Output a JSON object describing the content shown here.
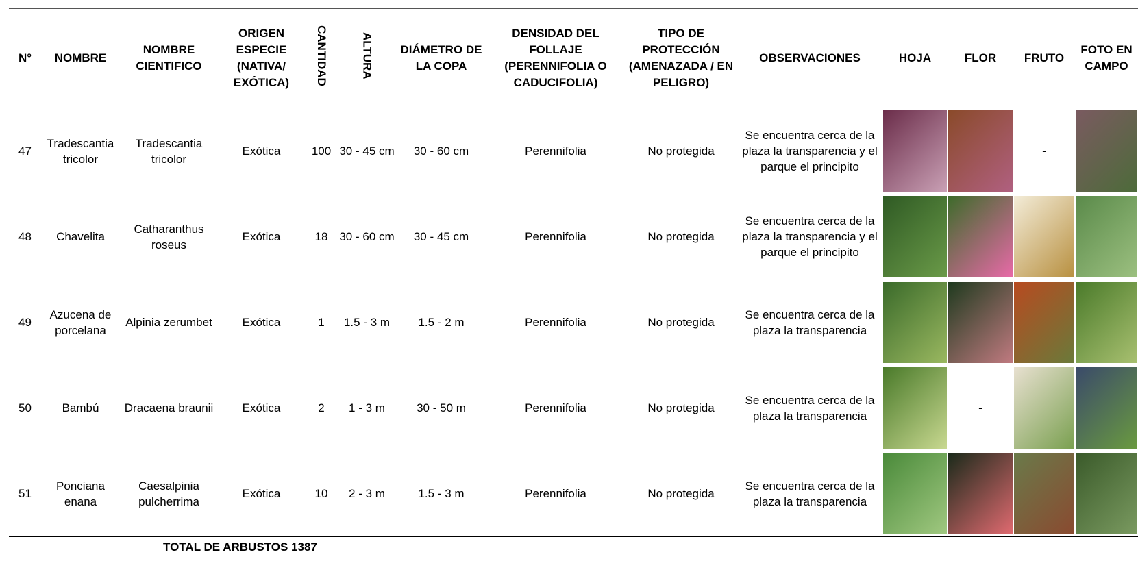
{
  "table": {
    "headers": [
      "N°",
      "NOMBRE",
      "NOMBRE CIENTIFICO",
      "ORIGEN ESPECIE (NATIVA/ EXÓTICA)",
      "CANTIDAD",
      "ALTURA",
      "DIÁMETRO DE LA COPA",
      "DENSIDAD DEL FOLLAJE (PERENNIFOLIA O CADUCIFOLIA)",
      "TIPO DE PROTECCIÓN (AMENAZADA / EN PELIGRO)",
      "OBSERVACIONES",
      "HOJA",
      "FLOR",
      "FRUTO",
      "FOTO EN CAMPO"
    ],
    "rows": [
      {
        "cells": [
          47,
          "Tradescantia tricolor",
          "Tradescantia tricolor",
          "Exótica",
          100,
          "30 - 45 cm",
          "30 - 60 cm",
          "Perennifolia",
          "No protegida",
          "Se encuentra cerca de la plaza la transparencia y el parque el principito"
        ],
        "media": [
          null,
          null,
          "-",
          null
        ]
      },
      {
        "cells": [
          48,
          "Chavelita",
          "Catharanthus roseus",
          "Exótica",
          18,
          "30 - 60 cm",
          "30 - 45 cm",
          "Perennifolia",
          "No protegida",
          "Se encuentra cerca de la plaza la transparencia y el parque el principito"
        ],
        "media": [
          null,
          null,
          null,
          null
        ]
      },
      {
        "cells": [
          49,
          "Azucena de porcelana",
          "Alpinia zerumbet",
          "Exótica",
          1,
          "1.5 - 3 m",
          "1.5 - 2 m",
          "Perennifolia",
          "No protegida",
          "Se encuentra cerca de la plaza la transparencia"
        ],
        "media": [
          null,
          null,
          null,
          null
        ]
      },
      {
        "cells": [
          50,
          "Bambú",
          "Dracaena braunii",
          "Exótica",
          2,
          "1 - 3 m",
          "30 - 50 m",
          "Perennifolia",
          "No protegida",
          "Se encuentra cerca de la plaza la transparencia"
        ],
        "media": [
          null,
          "-",
          null,
          null
        ]
      },
      {
        "cells": [
          51,
          "Ponciana enana",
          "Caesalpinia pulcherrima",
          "Exótica",
          10,
          "2 - 3 m",
          "1.5 - 3 m",
          "Perennifolia",
          "No protegida",
          "Se encuentra cerca de la plaza la transparencia"
        ],
        "media": [
          null,
          null,
          null,
          null
        ]
      }
    ],
    "footer": {
      "label": "TOTAL DE ARBUSTOS",
      "value": 1387
    }
  }
}
